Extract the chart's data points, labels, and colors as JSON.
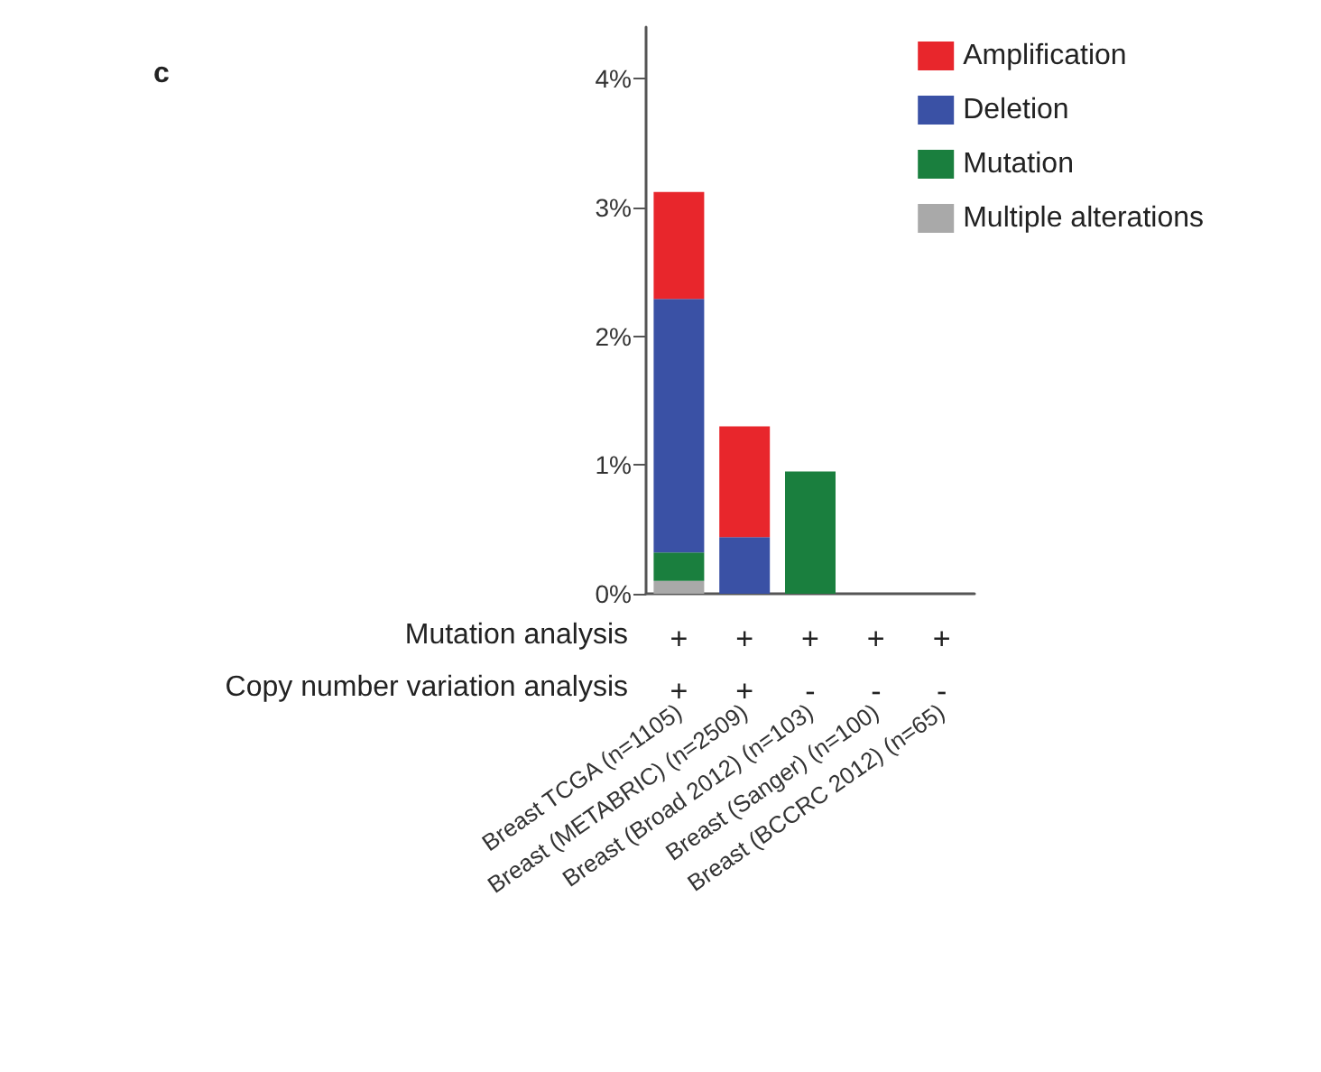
{
  "chart_data": {
    "type": "bar",
    "title": "c",
    "stacked": true,
    "categories": [
      "Breast TCGA (n=1105)",
      "Breast (METABRIC) (n=2509)",
      "Breast (Broad 2012) (n=103)",
      "Breast (Sanger) (n=100)",
      "Breast (BCCRC 2012) (n=65)"
    ],
    "series": [
      {
        "name": "Multiple alterations",
        "color": "#a9a9a9",
        "values": [
          0.1,
          null,
          null,
          null,
          null
        ]
      },
      {
        "name": "Mutation",
        "color": "#1a7f3e",
        "values": [
          0.22,
          null,
          0.95,
          null,
          null
        ]
      },
      {
        "name": "Deletion",
        "color": "#3a51a5",
        "values": [
          1.97,
          0.44,
          null,
          null,
          null
        ]
      },
      {
        "name": "Amplification",
        "color": "#e8262c",
        "values": [
          0.83,
          0.86,
          null,
          null,
          null
        ]
      }
    ],
    "ylim": [
      0,
      4.4
    ],
    "yticks": [
      {
        "value": 0,
        "label": "0%"
      },
      {
        "value": 1,
        "label": "1%"
      },
      {
        "value": 2,
        "label": "2%"
      },
      {
        "value": 3,
        "label": "3%"
      },
      {
        "value": 4,
        "label": "4%"
      }
    ],
    "grid": false,
    "legend": "top right",
    "annotations": [
      "Mutation analysis",
      "Copy number variation analysis",
      "+",
      "+",
      "+",
      "+",
      "+",
      "+",
      "+",
      "-",
      "-",
      "-"
    ]
  }
}
